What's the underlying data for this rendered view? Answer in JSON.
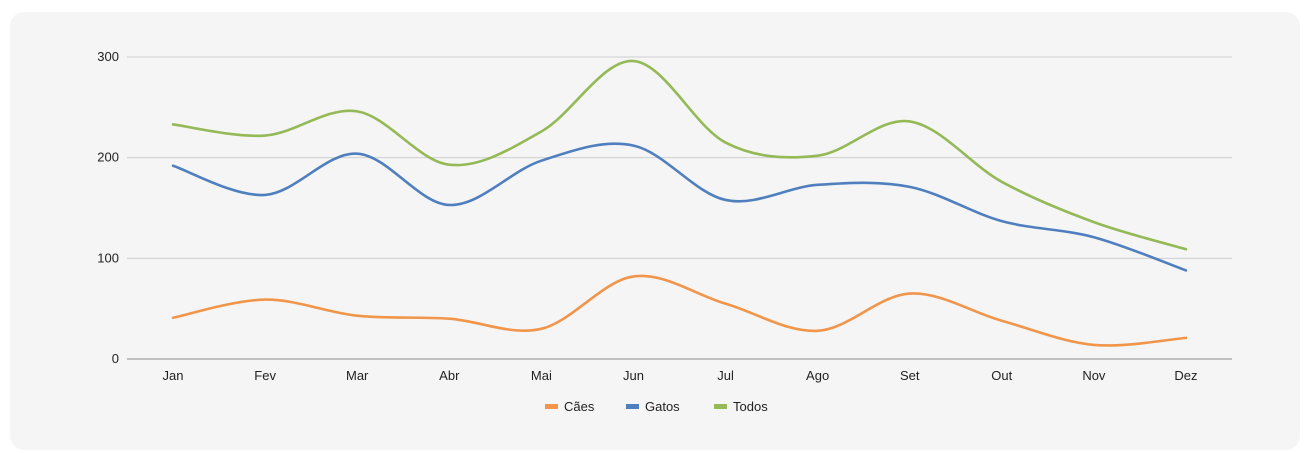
{
  "chart_data": {
    "type": "line",
    "title": "",
    "xlabel": "",
    "ylabel": "",
    "categories": [
      "Jan",
      "Fev",
      "Mar",
      "Abr",
      "Mai",
      "Jun",
      "Jul",
      "Ago",
      "Set",
      "Out",
      "Nov",
      "Dez"
    ],
    "ylim": [
      0,
      300
    ],
    "yticks": [
      0,
      100,
      200,
      300
    ],
    "grid": true,
    "smooth": true,
    "legend_position": "bottom",
    "series": [
      {
        "name": "Cães",
        "color": "#f0954a",
        "values": [
          41,
          59,
          43,
          40,
          30,
          82,
          55,
          28,
          65,
          38,
          14,
          21
        ]
      },
      {
        "name": "Gatos",
        "color": "#4f7fbf",
        "values": [
          192,
          163,
          204,
          153,
          197,
          212,
          158,
          173,
          171,
          137,
          121,
          88
        ]
      },
      {
        "name": "Todos",
        "color": "#94b957",
        "values": [
          233,
          222,
          246,
          193,
          226,
          296,
          215,
          202,
          236,
          176,
          136,
          109
        ]
      }
    ]
  }
}
